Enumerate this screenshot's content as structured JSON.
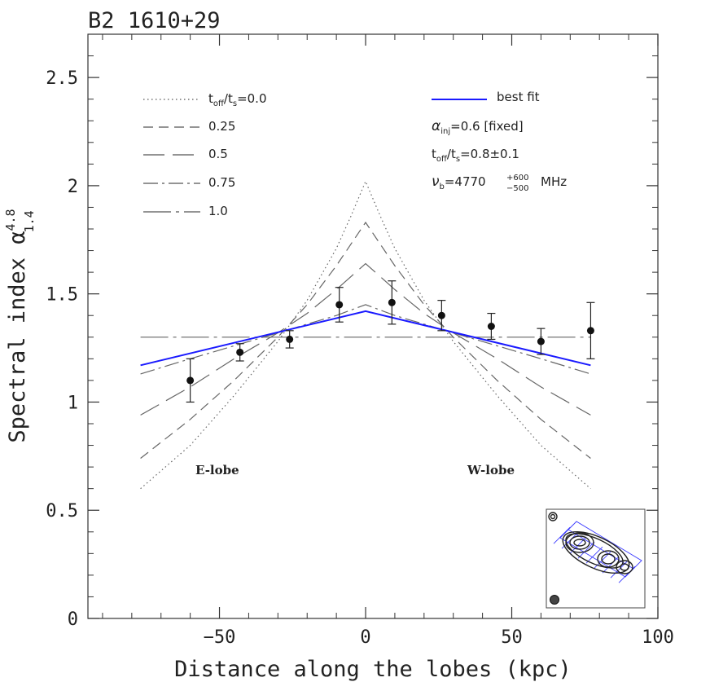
{
  "chart_data": {
    "type": "line",
    "title": "B2 1610+29",
    "xlabel": "Distance along the lobes (kpc)",
    "ylabel": "Spectral index α^4.8_1.4",
    "ylabel_main": "Spectral index α",
    "ylabel_sup": "4.8",
    "ylabel_sub": "1.4",
    "xlim": [
      -95,
      100
    ],
    "ylim": [
      0,
      2.7
    ],
    "xticks": [
      -50,
      0,
      50,
      100
    ],
    "xtick_labels": [
      "−50",
      "0",
      "50",
      "100"
    ],
    "yticks": [
      0,
      0.5,
      1,
      1.5,
      2,
      2.5
    ],
    "ytick_labels": [
      "0",
      "0.5",
      "1",
      "1.5",
      "2",
      "2.5"
    ],
    "model_series": [
      {
        "name": "toff/ts=0.0",
        "label": "0.0",
        "style": "dotted",
        "x": [
          -77,
          -60,
          -45,
          -30,
          -20,
          -10,
          -5,
          0,
          5,
          10,
          20,
          30,
          45,
          60,
          77
        ],
        "y": [
          0.6,
          0.8,
          1.03,
          1.28,
          1.47,
          1.71,
          1.86,
          2.02,
          1.86,
          1.71,
          1.47,
          1.28,
          1.03,
          0.8,
          0.6
        ]
      },
      {
        "name": "toff/ts=0.25",
        "label": "0.25",
        "style": "short-dash",
        "x": [
          -77,
          -60,
          -45,
          -30,
          -20,
          -10,
          0,
          10,
          20,
          30,
          45,
          60,
          77
        ],
        "y": [
          0.74,
          0.92,
          1.1,
          1.3,
          1.45,
          1.63,
          1.83,
          1.63,
          1.45,
          1.3,
          1.1,
          0.92,
          0.74
        ]
      },
      {
        "name": "toff/ts=0.5",
        "label": "0.5",
        "style": "long-dash",
        "x": [
          -77,
          -60,
          -45,
          -30,
          -20,
          -10,
          0,
          10,
          20,
          30,
          45,
          60,
          77
        ],
        "y": [
          0.94,
          1.07,
          1.2,
          1.32,
          1.41,
          1.52,
          1.64,
          1.52,
          1.41,
          1.32,
          1.2,
          1.07,
          0.94
        ]
      },
      {
        "name": "toff/ts=0.75",
        "label": "0.75",
        "style": "dash-dot",
        "x": [
          -77,
          -60,
          -45,
          -30,
          -20,
          -10,
          0,
          10,
          20,
          30,
          45,
          60,
          77
        ],
        "y": [
          1.13,
          1.2,
          1.26,
          1.32,
          1.36,
          1.4,
          1.45,
          1.4,
          1.36,
          1.32,
          1.26,
          1.2,
          1.13
        ]
      },
      {
        "name": "toff/ts=1.0",
        "label": "1.0",
        "style": "long-dash-dot",
        "x": [
          -77,
          77
        ],
        "y": [
          1.3,
          1.3
        ]
      }
    ],
    "best_fit": {
      "name": "best fit",
      "color": "#1a1aff",
      "x": [
        -77,
        0,
        77
      ],
      "y": [
        1.17,
        1.42,
        1.17
      ]
    },
    "measurements": {
      "x": [
        -60,
        -43,
        -26,
        -9,
        9,
        26,
        43,
        60,
        77
      ],
      "y": [
        1.1,
        1.23,
        1.29,
        1.45,
        1.46,
        1.4,
        1.35,
        1.28,
        1.33
      ],
      "err": [
        0.1,
        0.04,
        0.04,
        0.08,
        0.1,
        0.07,
        0.06,
        0.06,
        0.13
      ]
    },
    "legend": {
      "position": "top-left",
      "first_label_prefix": "t",
      "first_label_sub1": "off",
      "first_label_mid": "/t",
      "first_label_sub2": "s",
      "first_label_suffix": "=0.0",
      "labels": [
        "0.25",
        "0.5",
        "0.75",
        "1.0"
      ]
    },
    "fit_info": {
      "best_fit_label": "best fit",
      "alpha_symbol": "α",
      "alpha_sub": "inj",
      "alpha_value": "=0.6 [fixed]",
      "toff_prefix": "t",
      "toff_sub1": "off",
      "toff_mid": "/t",
      "toff_sub2": "s",
      "toff_value": "=0.8±0.1",
      "nu_symbol": "ν",
      "nu_sub": "b",
      "nu_value": "=4770",
      "nu_err_up": "+600",
      "nu_err_down": "−500",
      "nu_unit": "MHz"
    },
    "annotations": {
      "east": "E-lobe",
      "west": "W-lobe"
    },
    "inset": {
      "grid_color": "#3a3aff"
    }
  }
}
